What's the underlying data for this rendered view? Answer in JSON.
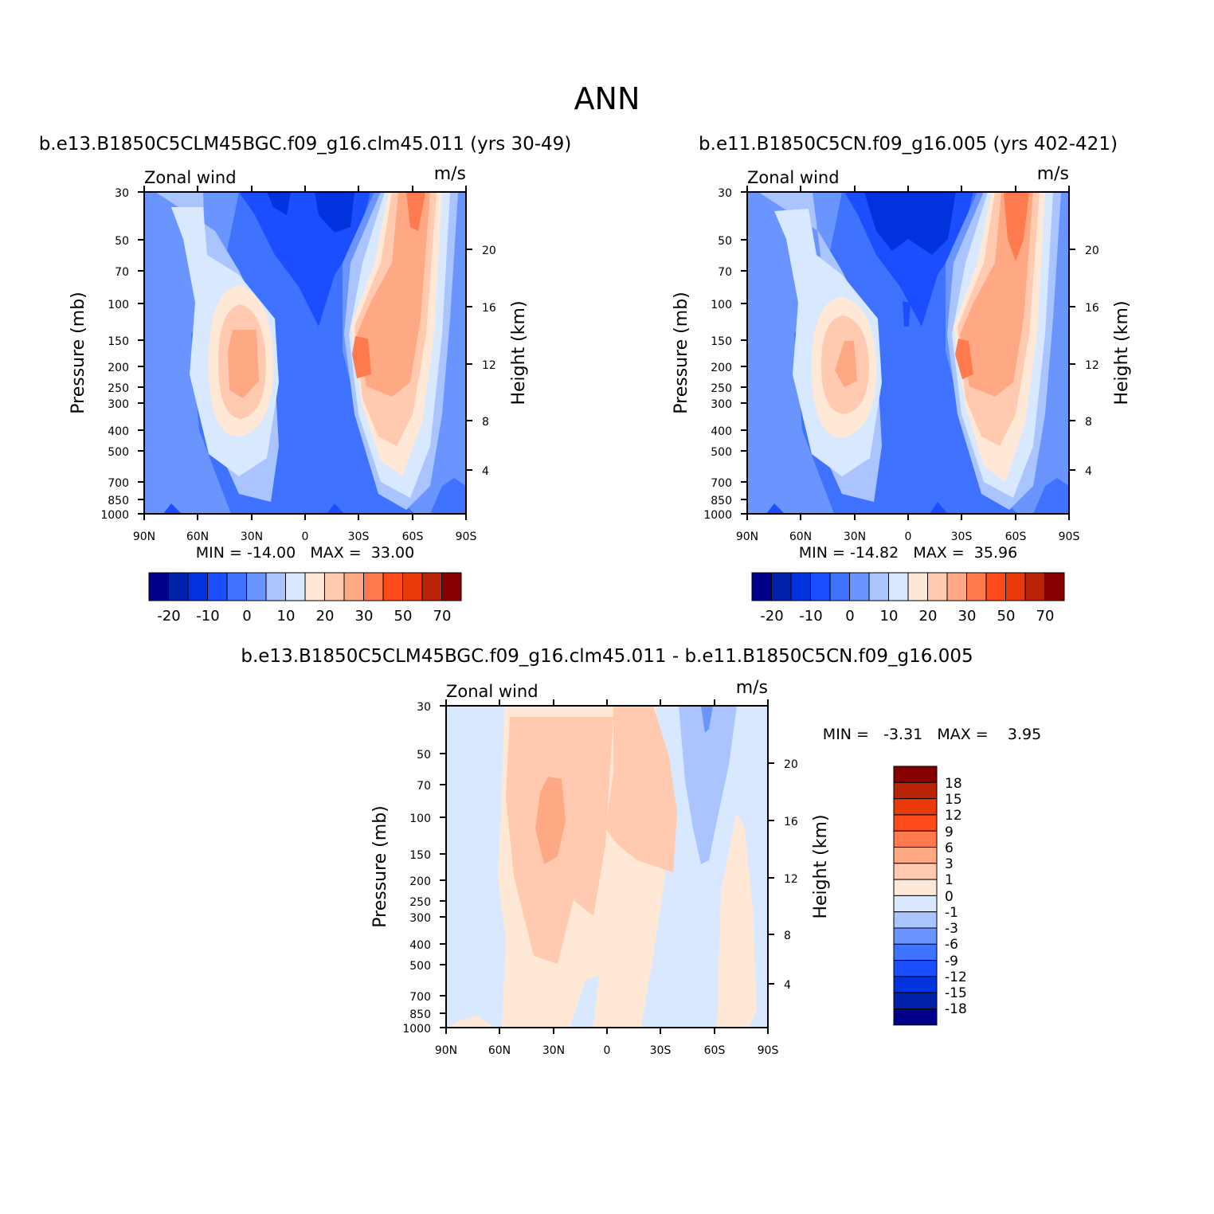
{
  "page_title": "ANN",
  "chart_data": [
    {
      "type": "heatmap",
      "title": "b.e13.B1850C5CLM45BGC.f09_g16.clm45.011 (yrs 30-49)",
      "left_label": "Zonal wind",
      "right_label": "m/s",
      "ylabel": "Pressure (mb)",
      "ylabel_right": "Height (km)",
      "x_ticks": [
        "90N",
        "60N",
        "30N",
        "0",
        "30S",
        "60S",
        "90S"
      ],
      "y_ticks": [
        "30",
        "50",
        "70",
        "100",
        "150",
        "200",
        "250",
        "300",
        "400",
        "500",
        "700",
        "850",
        "1000"
      ],
      "y_ticks_right": [
        "20",
        "16",
        "12",
        "8",
        "4"
      ],
      "stats_text": "MIN = -14.00   MAX =  33.00",
      "colorbar_labels": [
        "-20",
        "-10",
        "0",
        "10",
        "20",
        "30",
        "50",
        "70"
      ],
      "colorbar_orientation": "horizontal"
    },
    {
      "type": "heatmap",
      "title": "b.e11.B1850C5CN.f09_g16.005 (yrs 402-421)",
      "left_label": "Zonal wind",
      "right_label": "m/s",
      "ylabel": "Pressure (mb)",
      "ylabel_right": "Height (km)",
      "x_ticks": [
        "90N",
        "60N",
        "30N",
        "0",
        "30S",
        "60S",
        "90S"
      ],
      "y_ticks": [
        "30",
        "50",
        "70",
        "100",
        "150",
        "200",
        "250",
        "300",
        "400",
        "500",
        "700",
        "850",
        "1000"
      ],
      "y_ticks_right": [
        "20",
        "16",
        "12",
        "8",
        "4"
      ],
      "stats_text": "MIN = -14.82   MAX =  35.96",
      "colorbar_labels": [
        "-20",
        "-10",
        "0",
        "10",
        "20",
        "30",
        "50",
        "70"
      ],
      "colorbar_orientation": "horizontal"
    },
    {
      "type": "heatmap",
      "title": "b.e13.B1850C5CLM45BGC.f09_g16.clm45.011 - b.e11.B1850C5CN.f09_g16.005",
      "left_label": "Zonal wind",
      "right_label": "m/s",
      "ylabel": "Pressure (mb)",
      "ylabel_right": "Height (km)",
      "x_ticks": [
        "90N",
        "60N",
        "30N",
        "0",
        "30S",
        "60S",
        "90S"
      ],
      "y_ticks": [
        "30",
        "50",
        "70",
        "100",
        "150",
        "200",
        "250",
        "300",
        "400",
        "500",
        "700",
        "850",
        "1000"
      ],
      "y_ticks_right": [
        "20",
        "16",
        "12",
        "8",
        "4"
      ],
      "stats_text": "MIN =   -3.31   MAX =    3.95",
      "colorbar_labels": [
        "18",
        "15",
        "12",
        "9",
        "6",
        "3",
        "1",
        "0",
        "-1",
        "-3",
        "-6",
        "-9",
        "-12",
        "-15",
        "-18"
      ],
      "colorbar_orientation": "vertical"
    }
  ],
  "colors": {
    "abs_scale": [
      "#00008b",
      "#0022aa",
      "#0033dd",
      "#1a4eff",
      "#3f73ff",
      "#6a95ff",
      "#a9c4ff",
      "#d8e8ff",
      "#ffe8d6",
      "#ffcab0",
      "#ffa884",
      "#ff7a4f",
      "#ff4a1a",
      "#e83a0a",
      "#b92306",
      "#870000"
    ],
    "diff_scale": [
      "#870000",
      "#b92306",
      "#e83a0a",
      "#ff4a1a",
      "#ff7a4f",
      "#ffa884",
      "#ffcab0",
      "#ffe8d6",
      "#d8e8ff",
      "#a9c4ff",
      "#6a95ff",
      "#3f73ff",
      "#1a4eff",
      "#0033dd",
      "#0022aa",
      "#00008b"
    ]
  }
}
